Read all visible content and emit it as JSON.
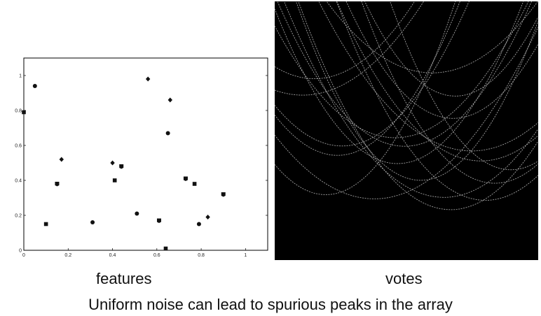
{
  "chart_data": [
    {
      "type": "scatter",
      "title": "",
      "xlabel": "",
      "ylabel": "",
      "xlim": [
        0,
        1.1
      ],
      "ylim": [
        0,
        1.1
      ],
      "x_ticks": [
        "0",
        "0.2",
        "0.4",
        "0.6",
        "0.8",
        "1"
      ],
      "y_ticks": [
        "0",
        "0.2",
        "0.4",
        "0.6",
        "0.8",
        "1"
      ],
      "grid": false,
      "points": [
        {
          "x": 0.0,
          "y": 0.79
        },
        {
          "x": 0.05,
          "y": 0.94
        },
        {
          "x": 0.17,
          "y": 0.52
        },
        {
          "x": 0.15,
          "y": 0.38
        },
        {
          "x": 0.1,
          "y": 0.15
        },
        {
          "x": 0.31,
          "y": 0.16
        },
        {
          "x": 0.4,
          "y": 0.5
        },
        {
          "x": 0.44,
          "y": 0.48
        },
        {
          "x": 0.41,
          "y": 0.4
        },
        {
          "x": 0.51,
          "y": 0.21
        },
        {
          "x": 0.56,
          "y": 0.98
        },
        {
          "x": 0.61,
          "y": 0.17
        },
        {
          "x": 0.64,
          "y": 0.01
        },
        {
          "x": 0.65,
          "y": 0.67
        },
        {
          "x": 0.66,
          "y": 0.86
        },
        {
          "x": 0.73,
          "y": 0.41
        },
        {
          "x": 0.77,
          "y": 0.38
        },
        {
          "x": 0.79,
          "y": 0.15
        },
        {
          "x": 0.83,
          "y": 0.19
        },
        {
          "x": 0.9,
          "y": 0.32
        }
      ]
    }
  ],
  "captions": {
    "features": "features",
    "votes": "votes",
    "main": "Uniform noise can lead to spurious peaks in the array"
  },
  "colors": {
    "votes_background": "#000000",
    "votes_curve": "#c8c8c8",
    "marker": "#111111"
  }
}
